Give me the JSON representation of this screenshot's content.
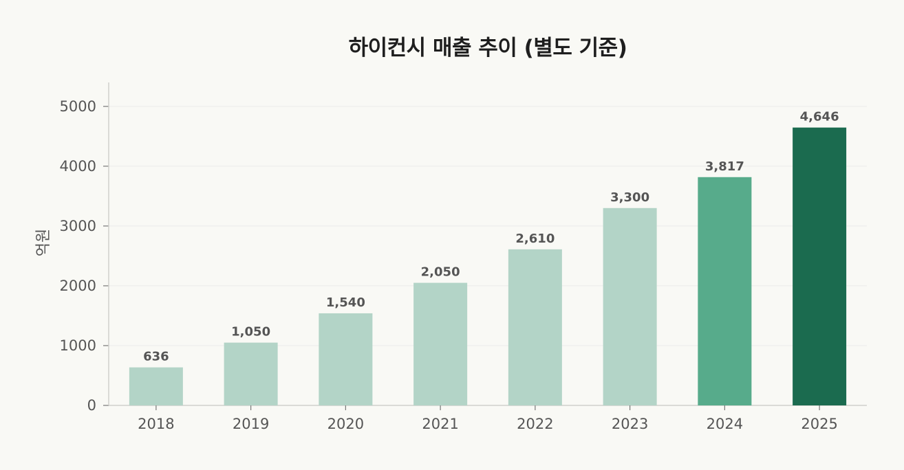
{
  "chart_data": {
    "type": "bar",
    "title": "하이컨시 매출 추이 (별도 기준)",
    "xlabel": "",
    "ylabel": "억원",
    "categories": [
      "2018",
      "2019",
      "2020",
      "2021",
      "2022",
      "2023",
      "2024",
      "2025"
    ],
    "values": [
      636,
      1050,
      1540,
      2050,
      2610,
      3300,
      3817,
      4646
    ],
    "value_labels": [
      "636",
      "1,050",
      "1,540",
      "2,050",
      "2,610",
      "3,300",
      "3,817",
      "4,646"
    ],
    "ylim": [
      0,
      5400
    ],
    "yticks": [
      0,
      1000,
      2000,
      3000,
      4000,
      5000
    ],
    "grid": true,
    "legend": "none",
    "colors": {
      "default": "#b3d4c7",
      "2024": "#57ab8b",
      "2025": "#1b6b4f",
      "grid": "#ececea",
      "axis": "#cfcfcc"
    }
  }
}
